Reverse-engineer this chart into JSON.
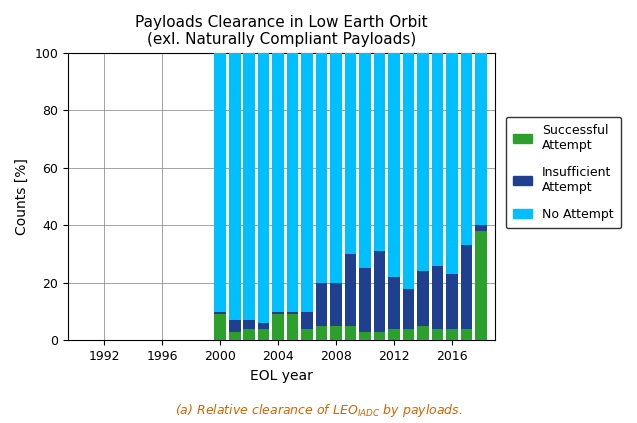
{
  "title_line1": "Payloads Clearance in Low Earth Orbit",
  "title_line2": "(exl. Naturally Compliant Payloads)",
  "xlabel": "EOL year",
  "ylabel": "Counts [%]",
  "ylim": [
    0,
    100
  ],
  "years": [
    2000,
    2001,
    2002,
    2003,
    2004,
    2005,
    2006,
    2007,
    2008,
    2009,
    2010,
    2011,
    2012,
    2013,
    2014,
    2015,
    2016,
    2017,
    2018
  ],
  "successful": [
    9,
    3,
    4,
    4,
    9,
    9,
    4,
    5,
    5,
    5,
    3,
    3,
    4,
    4,
    5,
    4,
    4,
    4,
    38
  ],
  "insufficient": [
    1,
    4,
    3,
    2,
    1,
    1,
    6,
    15,
    15,
    25,
    22,
    28,
    18,
    14,
    19,
    22,
    19,
    29,
    2
  ],
  "color_successful": "#2ca02c",
  "color_insufficient": "#1f3f8f",
  "color_no_attempt": "#00bfff",
  "bar_width": 0.8,
  "title_fontsize": 11,
  "axis_fontsize": 10,
  "caption_fontsize": 9,
  "caption_color": "#cc6600",
  "xticks": [
    1992,
    1996,
    2000,
    2004,
    2008,
    2012,
    2016
  ],
  "xlim": [
    1989.5,
    2019.0
  ]
}
